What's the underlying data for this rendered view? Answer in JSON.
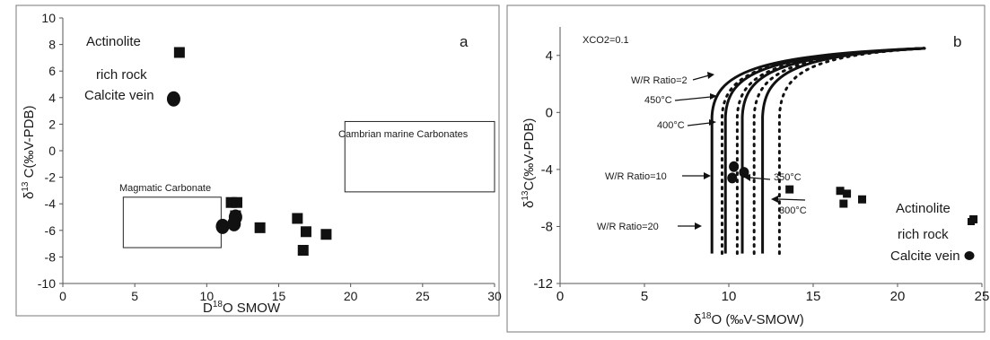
{
  "chart_data": [
    {
      "type": "scatter",
      "panel_label": "a",
      "xlabel": "D 18O SMOW",
      "xlabel_parts": [
        "D",
        "18",
        "O SMOW"
      ],
      "ylabel": "δ 13 C(‰V-PDB)",
      "ylabel_parts": [
        "δ",
        "13",
        " C(‰V-PDB)"
      ],
      "xlim": [
        0,
        30
      ],
      "ylim": [
        -10,
        10
      ],
      "xticks": [
        0,
        5,
        10,
        15,
        20,
        25,
        30
      ],
      "yticks": [
        10,
        8,
        6,
        4,
        2,
        0,
        -2,
        -4,
        -6,
        -8,
        -10
      ],
      "grid": false,
      "series": [
        {
          "name": "Actinolite rich rock",
          "marker": "square",
          "points": [
            {
              "x": 8.1,
              "y": 7.4
            },
            {
              "x": 11.7,
              "y": -3.9
            },
            {
              "x": 12.1,
              "y": -3.9
            },
            {
              "x": 12.0,
              "y": -4.9
            },
            {
              "x": 13.7,
              "y": -5.8
            },
            {
              "x": 16.3,
              "y": -5.1
            },
            {
              "x": 16.9,
              "y": -6.1
            },
            {
              "x": 16.7,
              "y": -7.5
            },
            {
              "x": 18.3,
              "y": -6.3
            }
          ]
        },
        {
          "name": "Calcite vein",
          "marker": "circle",
          "points": [
            {
              "x": 7.7,
              "y": 3.9
            },
            {
              "x": 11.1,
              "y": -5.7
            },
            {
              "x": 11.9,
              "y": -5.5
            },
            {
              "x": 12.0,
              "y": -5.0
            }
          ]
        }
      ],
      "legend": [
        {
          "marker": "square",
          "lines": [
            "Actinolite",
            "rich rock"
          ]
        },
        {
          "marker": "circle",
          "lines": [
            "Calcite vein"
          ]
        }
      ],
      "regions": [
        {
          "label": "Magmatic Carbonate",
          "x": [
            4.2,
            11.0
          ],
          "y": [
            -7.3,
            -3.5
          ]
        },
        {
          "label": "Cambrian marine Carbonates",
          "x": [
            19.6,
            30.0
          ],
          "y": [
            -3.1,
            2.2
          ]
        }
      ]
    },
    {
      "type": "scatter",
      "panel_label": "b",
      "subtitle": "XCO2=0.1",
      "xlabel": "δ 18O (‰V-SMOW)",
      "xlabel_parts": [
        "δ",
        "18",
        "O (‰V-SMOW)"
      ],
      "ylabel": "δ13C(‰V-PDB)",
      "ylabel_parts": [
        "δ",
        "13",
        "C(‰V-PDB)"
      ],
      "xlim": [
        0,
        25
      ],
      "ylim": [
        -12,
        6
      ],
      "xticks": [
        0,
        5,
        10,
        15,
        20,
        25
      ],
      "yticks": [
        4,
        0,
        -4,
        -8,
        -12
      ],
      "grid": false,
      "series": [
        {
          "name": "Actinolite rich rock",
          "marker": "square",
          "points": [
            {
              "x": 13.6,
              "y": -5.4
            },
            {
              "x": 16.6,
              "y": -5.5
            },
            {
              "x": 17.0,
              "y": -5.7
            },
            {
              "x": 16.8,
              "y": -6.4
            },
            {
              "x": 17.9,
              "y": -6.1
            },
            {
              "x": 24.5,
              "y": -7.5
            }
          ]
        },
        {
          "name": "Calcite vein",
          "marker": "circle",
          "points": [
            {
              "x": 10.3,
              "y": -3.8
            },
            {
              "x": 10.9,
              "y": -4.2
            },
            {
              "x": 10.2,
              "y": -4.6
            }
          ]
        }
      ],
      "model_curves": {
        "endpoint": {
          "x": 21.6,
          "y": 4.5
        },
        "solid_450C": [
          9.0,
          9.8,
          10.8,
          12.0
        ],
        "dotted_400C": [
          9.6,
          10.5,
          11.5,
          13.0
        ],
        "top_y": -9.9
      },
      "legend": [
        {
          "marker": "square",
          "lines": [
            "Actinolite",
            "rich rock"
          ]
        },
        {
          "marker": "circle",
          "lines": [
            "Calcite vein"
          ]
        }
      ],
      "annotations": [
        {
          "text": "W/R Ratio=2"
        },
        {
          "text": "450°C"
        },
        {
          "text": "400°C"
        },
        {
          "text": "W/R Ratio=10"
        },
        {
          "text": "350°C"
        },
        {
          "text": "300°C"
        },
        {
          "text": "W/R Ratio=20"
        }
      ]
    }
  ]
}
